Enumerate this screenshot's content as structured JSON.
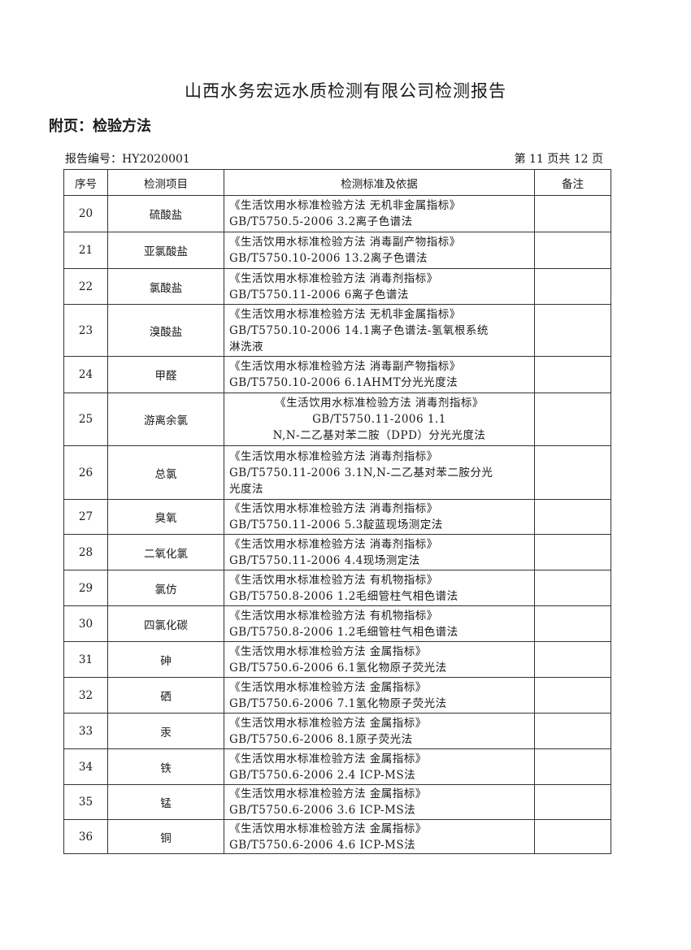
{
  "title": "山西水务宏远水质检测有限公司检测报告",
  "subtitle": "附页：检验方法",
  "report_no": "报告编号：HY2020001",
  "page_info": "第 11 页共 12 页",
  "table": {
    "headers": [
      "序号",
      "检测项目",
      "检测标准及依据",
      "备注"
    ],
    "rows": [
      {
        "no": "20",
        "item": "硫酸盐",
        "method": [
          "《生活饮用水标准检验方法 无机非金属指标》",
          "GB/T5750.5-2006  3.2离子色谱法"
        ],
        "note": ""
      },
      {
        "no": "21",
        "item": "亚氯酸盐",
        "method": [
          "《生活饮用水标准检验方法 消毒副产物指标》",
          "GB/T5750.10-2006  13.2离子色谱法"
        ],
        "note": ""
      },
      {
        "no": "22",
        "item": "氯酸盐",
        "method": [
          "《生活饮用水标准检验方法 消毒剂指标》",
          "GB/T5750.11-2006  6离子色谱法"
        ],
        "note": ""
      },
      {
        "no": "23",
        "item": "溴酸盐",
        "method": [
          "《生活饮用水标准检验方法 无机非金属指标》",
          "GB/T5750.10-2006  14.1离子色谱法-氢氧根系统",
          "淋洗液"
        ],
        "note": ""
      },
      {
        "no": "24",
        "item": "甲醛",
        "method": [
          "《生活饮用水标准检验方法 消毒副产物指标》",
          "GB/T5750.10-2006  6.1AHMT分光光度法"
        ],
        "note": ""
      },
      {
        "no": "25",
        "item": "游离余氯",
        "method": [
          "《生活饮用水标准检验方法 消毒剂指标》",
          "GB/T5750.11-2006 1.1",
          "N,N-二乙基对苯二胺（DPD）分光光度法"
        ],
        "note": "",
        "centered": true
      },
      {
        "no": "26",
        "item": "总氯",
        "method": [
          "《生活饮用水标准检验方法 消毒剂指标》",
          "GB/T5750.11-2006  3.1N,N-二乙基对苯二胺分光",
          "光度法"
        ],
        "note": ""
      },
      {
        "no": "27",
        "item": "臭氧",
        "method": [
          "《生活饮用水标准检验方法 消毒剂指标》",
          "GB/T5750.11-2006  5.3靛蓝现场测定法"
        ],
        "note": ""
      },
      {
        "no": "28",
        "item": "二氧化氯",
        "method": [
          "《生活饮用水标准检验方法 消毒剂指标》",
          "GB/T5750.11-2006  4.4现场测定法"
        ],
        "note": ""
      },
      {
        "no": "29",
        "item": "氯仿",
        "method": [
          "《生活饮用水标准检验方法 有机物指标》",
          "GB/T5750.8-2006  1.2毛细管柱气相色谱法"
        ],
        "note": ""
      },
      {
        "no": "30",
        "item": "四氯化碳",
        "method": [
          "《生活饮用水标准检验方法 有机物指标》",
          "GB/T5750.8-2006  1.2毛细管柱气相色谱法"
        ],
        "note": ""
      },
      {
        "no": "31",
        "item": "砷",
        "method": [
          "《生活饮用水标准检验方法 金属指标》",
          "GB/T5750.6-2006  6.1氢化物原子荧光法"
        ],
        "note": ""
      },
      {
        "no": "32",
        "item": "硒",
        "method": [
          "《生活饮用水标准检验方法 金属指标》",
          "GB/T5750.6-2006  7.1氢化物原子荧光法"
        ],
        "note": ""
      },
      {
        "no": "33",
        "item": "汞",
        "method": [
          "《生活饮用水标准检验方法 金属指标》",
          "GB/T5750.6-2006  8.1原子荧光法"
        ],
        "note": ""
      },
      {
        "no": "34",
        "item": "铁",
        "method": [
          "《生活饮用水标准检验方法 金属指标》",
          "GB/T5750.6-2006  2.4 ICP-MS法"
        ],
        "note": ""
      },
      {
        "no": "35",
        "item": "锰",
        "method": [
          "《生活饮用水标准检验方法 金属指标》",
          "GB/T5750.6-2006  3.6 ICP-MS法"
        ],
        "note": ""
      },
      {
        "no": "36",
        "item": "铜",
        "method": [
          "《生活饮用水标准检验方法 金属指标》",
          "GB/T5750.6-2006  4.6 ICP-MS法"
        ],
        "note": ""
      }
    ]
  }
}
